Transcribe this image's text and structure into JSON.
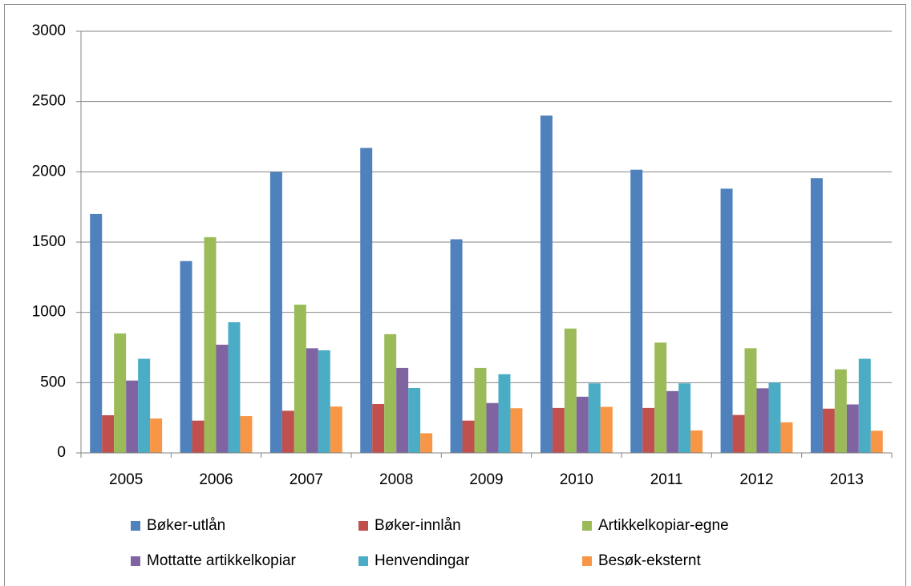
{
  "chart_data": {
    "type": "bar",
    "categories": [
      "2005",
      "2006",
      "2007",
      "2008",
      "2009",
      "2010",
      "2011",
      "2012",
      "2013"
    ],
    "series": [
      {
        "name": "Bøker-utlån",
        "color": "#4f81bd",
        "values": [
          1700,
          1365,
          2000,
          2170,
          1520,
          2400,
          2015,
          1880,
          1955
        ]
      },
      {
        "name": "Bøker-innlån",
        "color": "#c0504d",
        "values": [
          268,
          230,
          300,
          348,
          230,
          320,
          320,
          270,
          315
        ]
      },
      {
        "name": "Artikkelkopiar-egne",
        "color": "#9bbb59",
        "values": [
          850,
          1535,
          1055,
          845,
          605,
          885,
          785,
          745,
          595
        ]
      },
      {
        "name": "Mottatte artikkelkopiar",
        "color": "#8064a2",
        "values": [
          515,
          770,
          745,
          605,
          355,
          400,
          440,
          460,
          345
        ]
      },
      {
        "name": "Henvendingar",
        "color": "#4bacc6",
        "values": [
          670,
          930,
          730,
          462,
          560,
          495,
          495,
          500,
          670
        ]
      },
      {
        "name": "Besøk-eksternt",
        "color": "#f79646",
        "values": [
          245,
          262,
          330,
          140,
          318,
          328,
          160,
          218,
          158
        ]
      }
    ],
    "ylim": [
      0,
      3000
    ],
    "yticks": [
      0,
      500,
      1000,
      1500,
      2000,
      2500,
      3000
    ],
    "grid": true,
    "legend": "bottom"
  }
}
